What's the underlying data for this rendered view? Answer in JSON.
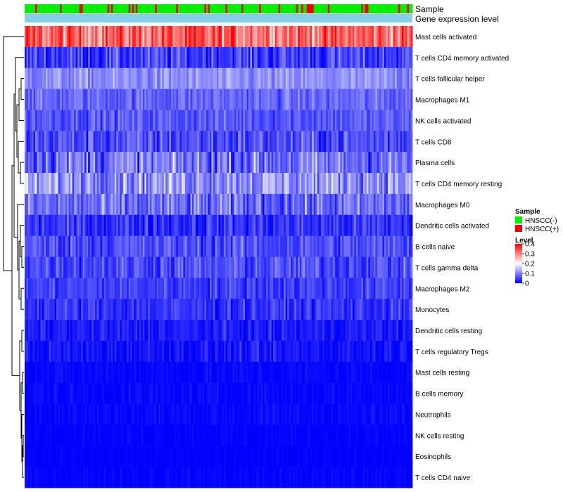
{
  "chart_data": {
    "type": "heatmap",
    "title": "",
    "annotation_tracks": [
      "Sample",
      "Gene expression level"
    ],
    "rows": [
      {
        "name": "Mast cells activated",
        "mean": 0.32,
        "spread": 0.09
      },
      {
        "name": "T cells CD4 memory activated",
        "mean": 0.05,
        "spread": 0.06
      },
      {
        "name": "T cells follicular helper",
        "mean": 0.11,
        "spread": 0.04
      },
      {
        "name": "Macrophages M1",
        "mean": 0.08,
        "spread": 0.04
      },
      {
        "name": "NK cells activated",
        "mean": 0.07,
        "spread": 0.04
      },
      {
        "name": "T cells CD8",
        "mean": 0.06,
        "spread": 0.06
      },
      {
        "name": "Plasma cells",
        "mean": 0.09,
        "spread": 0.08
      },
      {
        "name": "T cells CD4 memory resting",
        "mean": 0.12,
        "spread": 0.07
      },
      {
        "name": "Macrophages M0",
        "mean": 0.08,
        "spread": 0.07
      },
      {
        "name": "Dendritic cells activated",
        "mean": 0.04,
        "spread": 0.05
      },
      {
        "name": "B cells naive",
        "mean": 0.06,
        "spread": 0.05
      },
      {
        "name": "T cells gamma delta",
        "mean": 0.06,
        "spread": 0.05
      },
      {
        "name": "Macrophages M2",
        "mean": 0.05,
        "spread": 0.04
      },
      {
        "name": "Monocytes",
        "mean": 0.04,
        "spread": 0.04
      },
      {
        "name": "Dendritic cells resting",
        "mean": 0.02,
        "spread": 0.03
      },
      {
        "name": "T cells regulatory  Tregs",
        "mean": 0.015,
        "spread": 0.03
      },
      {
        "name": "Mast cells resting",
        "mean": 0.005,
        "spread": 0.015
      },
      {
        "name": "B cells memory",
        "mean": 0.005,
        "spread": 0.015
      },
      {
        "name": "Neutrophils",
        "mean": 0.006,
        "spread": 0.015
      },
      {
        "name": "NK cells resting",
        "mean": 0.002,
        "spread": 0.01
      },
      {
        "name": "Eosinophils",
        "mean": 0.001,
        "spread": 0.005
      },
      {
        "name": "T cells CD4 naive",
        "mean": 0.003,
        "spread": 0.01
      }
    ],
    "n_samples": 220,
    "sample_positive_fraction": 0.18,
    "color_scale": {
      "min": 0,
      "mid": 0.2,
      "max": 0.4,
      "low_color": "#0000ff",
      "mid_color": "#ffffff",
      "high_color": "#ff0000"
    },
    "legend": {
      "sample_title": "Sample",
      "sample_entries": [
        {
          "label": "HNSCC(-)",
          "color": "#00ee00"
        },
        {
          "label": "HNSCC(+)",
          "color": "#ee0000"
        }
      ],
      "level_title": "Level",
      "level_ticks": [
        "0.4",
        "0.3",
        "0.2",
        "0.1",
        "0"
      ],
      "level_tick_values": [
        0.4,
        0.3,
        0.2,
        0.1,
        0
      ]
    },
    "gene_expression_color": "#87ceeb",
    "row_dendrogram": true
  }
}
